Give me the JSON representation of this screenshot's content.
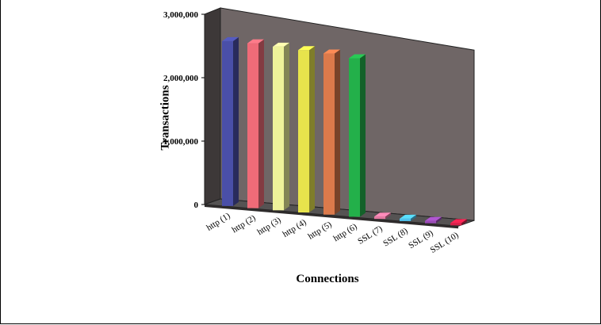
{
  "chart_data": {
    "type": "bar",
    "categories": [
      "http (1)",
      "http (2)",
      "http (3)",
      "http (4)",
      "http (5)",
      "http (6)",
      "SSL (7)",
      "SSL (8)",
      "SSL (9)",
      "SSL (10)"
    ],
    "values": [
      2600000,
      2600000,
      2580000,
      2560000,
      2540000,
      2500000,
      20000,
      20000,
      20000,
      20000
    ],
    "colors": [
      "#4a4fa8",
      "#ef6b78",
      "#eef29a",
      "#e7e34c",
      "#dc7a4b",
      "#23b04a",
      "#e57aa3",
      "#4ec3ef",
      "#9a4bb7",
      "#d9204a"
    ],
    "xlabel": "Connections",
    "ylabel": "Transactions",
    "yticks": [
      "0",
      "1,000,000",
      "2,000,000",
      "3,000,000"
    ],
    "ylim": [
      0,
      3000000
    ],
    "wall_color": "#6f6666",
    "floor_color": "#555353"
  }
}
